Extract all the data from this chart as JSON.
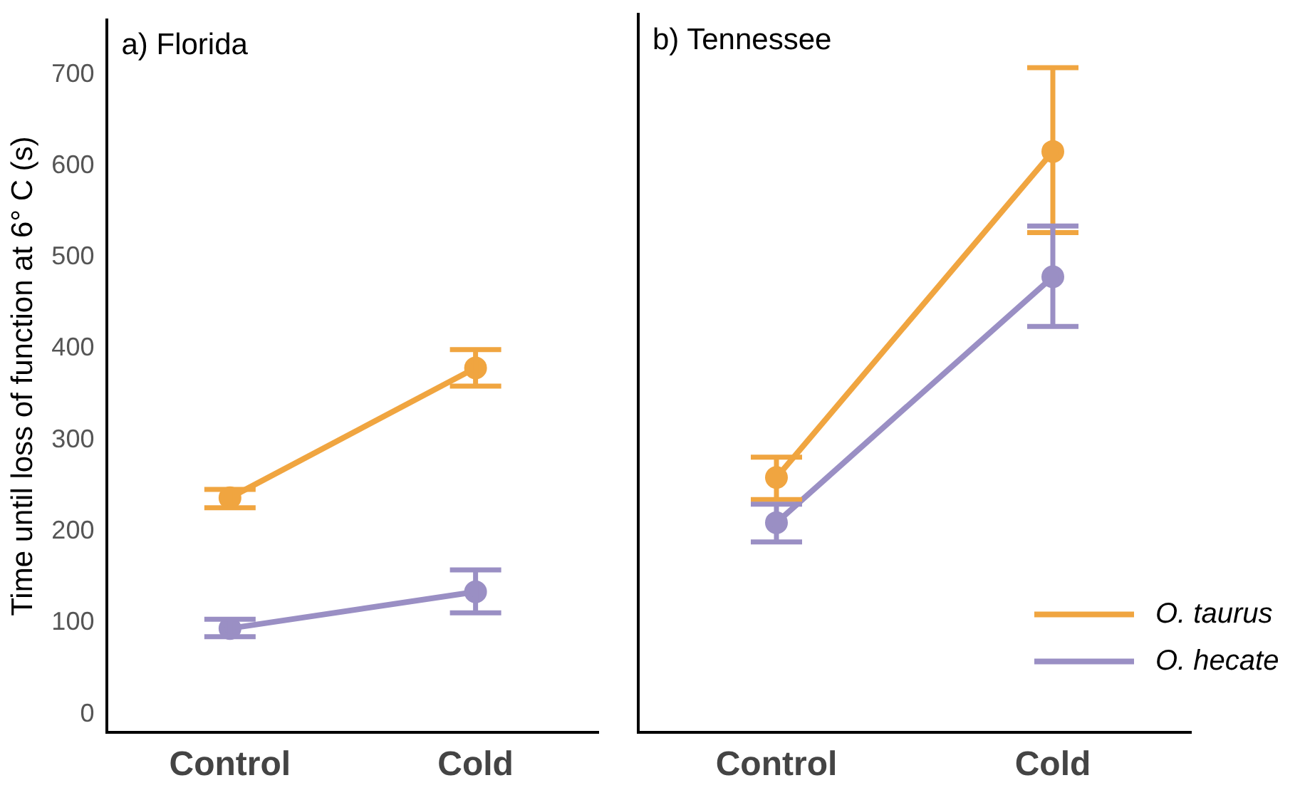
{
  "chart_data": [
    {
      "type": "line",
      "title": "a) Florida",
      "ylabel": "Time until loss of function at 6° C (s)",
      "categories": [
        "Control",
        "Cold"
      ],
      "ylim": [
        -20,
        760
      ],
      "yticks": [
        0,
        100,
        200,
        300,
        400,
        500,
        600,
        700
      ],
      "grid": false,
      "legend": false,
      "marker": "circle",
      "line_style": "solid",
      "series": [
        {
          "color": "#f0a540",
          "values": [
            237,
            379
          ],
          "errors": [
            [
              226,
              246
            ],
            [
              359,
              399
            ]
          ]
        },
        {
          "color": "#9a8fc4",
          "values": [
            94,
            134
          ],
          "errors": [
            [
              85,
              104
            ],
            [
              111,
              158
            ]
          ]
        }
      ]
    },
    {
      "type": "line",
      "title": "b) Tennessee",
      "categories": [
        "Control",
        "Cold"
      ],
      "ylim": [
        -20,
        760
      ],
      "yticks": [
        0,
        100,
        200,
        300,
        400,
        500,
        600,
        700
      ],
      "tick_labels": "x",
      "grid": false,
      "legend": "bottom right",
      "marker": "circle",
      "line_style": "solid",
      "series": [
        {
          "name": "O. taurus",
          "color": "#f0a540",
          "values": [
            257,
            611
          ],
          "errors": [
            [
              233,
              279
            ],
            [
              523,
              702
            ]
          ]
        },
        {
          "name": "O. hecate",
          "color": "#9a8fc4",
          "values": [
            208,
            475
          ],
          "errors": [
            [
              187,
              228
            ],
            [
              421,
              530
            ]
          ]
        }
      ]
    }
  ]
}
